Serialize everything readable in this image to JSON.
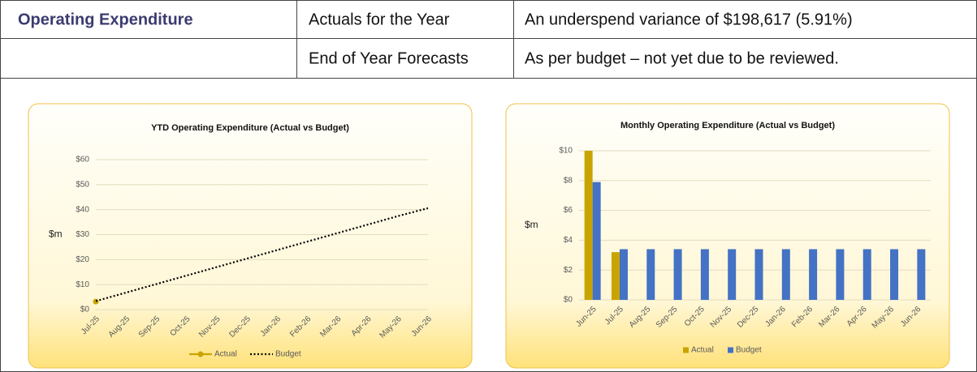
{
  "table": {
    "rows": [
      [
        "Operating Expenditure",
        "Actuals for the Year",
        "An underspend variance of $198,617 (5.91%)"
      ],
      [
        "End of Year Forecasts",
        "As per budget – not yet due to be reviewed."
      ]
    ]
  },
  "chart_data": [
    {
      "type": "line",
      "title": "YTD Operating Expenditure (Actual vs Budget)",
      "y_label": "$m",
      "categories": [
        "Jul-25",
        "Aug-25",
        "Sep-25",
        "Oct-25",
        "Nov-25",
        "Dec-25",
        "Jan-26",
        "Feb-26",
        "Mar-26",
        "Apr-26",
        "May-26",
        "Jun-26"
      ],
      "series": [
        {
          "name": "Actual",
          "color": "#c9a400",
          "line_style": "solid",
          "marker": true,
          "values": [
            3.2,
            null,
            null,
            null,
            null,
            null,
            null,
            null,
            null,
            null,
            null,
            null
          ]
        },
        {
          "name": "Budget",
          "color": "#000000",
          "line_style": "dotted",
          "marker": false,
          "values": [
            3.4,
            6.8,
            10.2,
            13.6,
            17.0,
            20.4,
            23.8,
            27.2,
            30.6,
            34.0,
            37.4,
            40.6
          ]
        }
      ],
      "ylim": [
        0,
        60
      ],
      "yticks": [
        {
          "value": 0,
          "label": "$0"
        },
        {
          "value": 10,
          "label": "$10"
        },
        {
          "value": 20,
          "label": "$20"
        },
        {
          "value": 30,
          "label": "$30"
        },
        {
          "value": 40,
          "label": "$40"
        },
        {
          "value": 50,
          "label": "$50"
        },
        {
          "value": 60,
          "label": "$60"
        }
      ],
      "grid": true,
      "legend": "bottom"
    },
    {
      "type": "bar",
      "title": "Monthly Operating Expenditure (Actual vs Budget)",
      "y_label": "$m",
      "categories": [
        "Jun-25",
        "Jul-25",
        "Aug-25",
        "Sep-25",
        "Oct-25",
        "Nov-25",
        "Dec-25",
        "Jan-26",
        "Feb-26",
        "Mar-26",
        "Apr-26",
        "May-26",
        "Jun-26"
      ],
      "series": [
        {
          "name": "Actual",
          "color": "#c9a400",
          "values": [
            10,
            3.2,
            null,
            null,
            null,
            null,
            null,
            null,
            null,
            null,
            null,
            null,
            null
          ]
        },
        {
          "name": "Budget",
          "color": "#4472c4",
          "values": [
            7.9,
            3.4,
            3.4,
            3.4,
            3.4,
            3.4,
            3.4,
            3.4,
            3.4,
            3.4,
            3.4,
            3.4,
            3.4
          ]
        }
      ],
      "ylim": [
        0,
        10
      ],
      "yticks": [
        {
          "value": 0,
          "label": "$0"
        },
        {
          "value": 2,
          "label": "$2"
        },
        {
          "value": 4,
          "label": "$4"
        },
        {
          "value": 6,
          "label": "$6"
        },
        {
          "value": 8,
          "label": "$8"
        },
        {
          "value": 10,
          "label": "$10"
        }
      ],
      "grid": true,
      "legend": "bottom"
    }
  ]
}
